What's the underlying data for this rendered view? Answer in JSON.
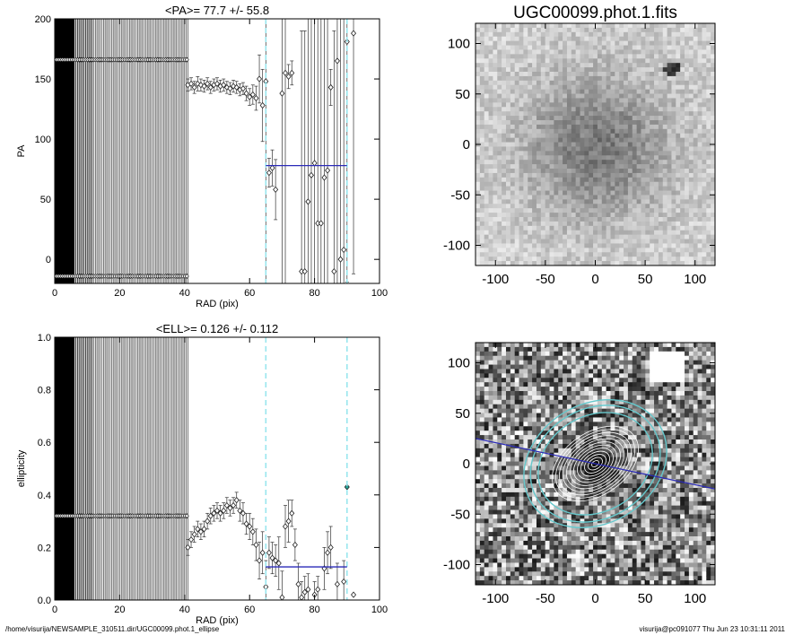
{
  "footer": {
    "left": "/home/visurija/NEWSAMPLE_310511.dir/UGC00099.phot.1_ellipse",
    "right": "visurija@pc091077  Thu Jun 23 10:31:11 2011"
  },
  "colors": {
    "fit_line": "#2a2ab8",
    "marker_line": "#99e6ee",
    "ellipse": "#66c8cc",
    "cyan_point": "#26a69a"
  },
  "chart_data": [
    {
      "type": "scatter",
      "title": "<PA>=  77.7 +/-  55.8",
      "xlabel": "RAD (pix)",
      "ylabel": "PA",
      "xlim": [
        0,
        100
      ],
      "ylim": [
        -20,
        200
      ],
      "xticks": [
        0,
        20,
        40,
        60,
        80,
        100
      ],
      "yticks": [
        0,
        50,
        100,
        150,
        200
      ],
      "dense_vlines": {
        "x_start": 1,
        "x_end": 41,
        "step": 0.5
      },
      "flat_bands": [
        {
          "y": 166,
          "x_start": 0,
          "x_end": 41
        },
        {
          "y": -14,
          "x_start": 0,
          "x_end": 41
        }
      ],
      "points": [
        {
          "x": 41,
          "y": 145,
          "err": 5
        },
        {
          "x": 42,
          "y": 146,
          "err": 5
        },
        {
          "x": 43,
          "y": 143,
          "err": 5
        },
        {
          "x": 44,
          "y": 146,
          "err": 6
        },
        {
          "x": 45,
          "y": 145,
          "err": 5
        },
        {
          "x": 46,
          "y": 144,
          "err": 5
        },
        {
          "x": 47,
          "y": 146,
          "err": 5
        },
        {
          "x": 48,
          "y": 143,
          "err": 5
        },
        {
          "x": 49,
          "y": 145,
          "err": 5
        },
        {
          "x": 50,
          "y": 146,
          "err": 5
        },
        {
          "x": 51,
          "y": 144,
          "err": 5
        },
        {
          "x": 52,
          "y": 145,
          "err": 5
        },
        {
          "x": 53,
          "y": 143,
          "err": 5
        },
        {
          "x": 54,
          "y": 142,
          "err": 5
        },
        {
          "x": 55,
          "y": 144,
          "err": 5
        },
        {
          "x": 56,
          "y": 143,
          "err": 5
        },
        {
          "x": 57,
          "y": 141,
          "err": 5
        },
        {
          "x": 58,
          "y": 142,
          "err": 5
        },
        {
          "x": 59,
          "y": 138,
          "err": 6
        },
        {
          "x": 60,
          "y": 135,
          "err": 7
        },
        {
          "x": 61,
          "y": 137,
          "err": 8
        },
        {
          "x": 62,
          "y": 134,
          "err": 10
        },
        {
          "x": 63,
          "y": 150,
          "err": 20
        },
        {
          "x": 64,
          "y": 128,
          "err": 30
        },
        {
          "x": 65,
          "y": 148,
          "err": 200
        },
        {
          "x": 66,
          "y": 72,
          "err": 12
        },
        {
          "x": 67,
          "y": 76,
          "err": 15
        },
        {
          "x": 68,
          "y": 58,
          "err": 25
        },
        {
          "x": 70,
          "y": 138,
          "err": 200
        },
        {
          "x": 71,
          "y": 155,
          "err": 200
        },
        {
          "x": 72,
          "y": 152,
          "err": 10
        },
        {
          "x": 73,
          "y": 155,
          "err": 10
        },
        {
          "x": 76,
          "y": -10,
          "err": 200
        },
        {
          "x": 77,
          "y": -10,
          "err": 200
        },
        {
          "x": 78,
          "y": 48,
          "err": 200
        },
        {
          "x": 79,
          "y": 70,
          "err": 200
        },
        {
          "x": 80,
          "y": 80,
          "err": 200
        },
        {
          "x": 81,
          "y": 30,
          "err": 200
        },
        {
          "x": 82,
          "y": 30,
          "err": 200
        },
        {
          "x": 83,
          "y": 68,
          "err": 200
        },
        {
          "x": 84,
          "y": 74,
          "err": 200
        },
        {
          "x": 85,
          "y": 143,
          "err": 15
        },
        {
          "x": 86,
          "y": -10,
          "err": 200
        },
        {
          "x": 87,
          "y": 165,
          "err": 200
        },
        {
          "x": 88,
          "y": 0,
          "err": 200
        },
        {
          "x": 89,
          "y": 8,
          "err": 200
        },
        {
          "x": 90,
          "y": 181,
          "err": 200
        },
        {
          "x": 92,
          "y": 188,
          "err": 200
        }
      ],
      "fit_line": {
        "y": 78,
        "x_start": 65,
        "x_end": 90
      },
      "dashed_x": [
        65,
        90
      ]
    },
    {
      "type": "scatter",
      "title": "<ELL>= 0.126 +/-  0.112",
      "xlabel": "RAD (pix)",
      "ylabel": "ellipticity",
      "xlim": [
        0,
        100
      ],
      "ylim": [
        0.0,
        1.0
      ],
      "xticks": [
        0,
        20,
        40,
        60,
        80,
        100
      ],
      "yticks": [
        0.0,
        0.2,
        0.4,
        0.6,
        0.8,
        1.0
      ],
      "dense_vlines": {
        "x_start": 1,
        "x_end": 41,
        "step": 0.5
      },
      "flat_bands": [
        {
          "y": 0.32,
          "x_start": 0,
          "x_end": 41
        }
      ],
      "points": [
        {
          "x": 41,
          "y": 0.2,
          "err": 0.03
        },
        {
          "x": 42,
          "y": 0.23,
          "err": 0.03
        },
        {
          "x": 43,
          "y": 0.25,
          "err": 0.03
        },
        {
          "x": 44,
          "y": 0.27,
          "err": 0.03
        },
        {
          "x": 45,
          "y": 0.26,
          "err": 0.03
        },
        {
          "x": 46,
          "y": 0.27,
          "err": 0.03
        },
        {
          "x": 47,
          "y": 0.3,
          "err": 0.03
        },
        {
          "x": 48,
          "y": 0.32,
          "err": 0.03
        },
        {
          "x": 49,
          "y": 0.33,
          "err": 0.03
        },
        {
          "x": 50,
          "y": 0.34,
          "err": 0.03
        },
        {
          "x": 51,
          "y": 0.33,
          "err": 0.03
        },
        {
          "x": 52,
          "y": 0.34,
          "err": 0.03
        },
        {
          "x": 53,
          "y": 0.36,
          "err": 0.03
        },
        {
          "x": 54,
          "y": 0.35,
          "err": 0.03
        },
        {
          "x": 55,
          "y": 0.36,
          "err": 0.03
        },
        {
          "x": 56,
          "y": 0.38,
          "err": 0.03
        },
        {
          "x": 57,
          "y": 0.34,
          "err": 0.04
        },
        {
          "x": 58,
          "y": 0.33,
          "err": 0.04
        },
        {
          "x": 59,
          "y": 0.29,
          "err": 0.04
        },
        {
          "x": 60,
          "y": 0.28,
          "err": 0.05
        },
        {
          "x": 61,
          "y": 0.26,
          "err": 0.05
        },
        {
          "x": 62,
          "y": 0.21,
          "err": 0.06
        },
        {
          "x": 63,
          "y": 0.15,
          "err": 0.07
        },
        {
          "x": 64,
          "y": 0.18,
          "err": 0.08
        },
        {
          "x": 65,
          "y": 0.05,
          "err": 0.1
        },
        {
          "x": 66,
          "y": 0.18,
          "err": 0.06
        },
        {
          "x": 67,
          "y": 0.16,
          "err": 0.06
        },
        {
          "x": 68,
          "y": 0.15,
          "err": 0.06
        },
        {
          "x": 69,
          "y": 0.14,
          "err": 0.1
        },
        {
          "x": 70,
          "y": 0.01,
          "err": 0.1
        },
        {
          "x": 71,
          "y": 0.28,
          "err": 0.08
        },
        {
          "x": 72,
          "y": 0.3,
          "err": 0.08
        },
        {
          "x": 73,
          "y": 0.33,
          "err": 0.05
        },
        {
          "x": 74,
          "y": 0.21,
          "err": 0.06
        },
        {
          "x": 75,
          "y": 0.06,
          "err": 0.08
        },
        {
          "x": 76,
          "y": 0.01,
          "err": 0.06
        },
        {
          "x": 77,
          "y": 0.03,
          "err": 0.06
        },
        {
          "x": 78,
          "y": 0.04,
          "err": 0.06
        },
        {
          "x": 80,
          "y": 0.02,
          "err": 0.05
        },
        {
          "x": 81,
          "y": 0.04,
          "err": 0.05
        },
        {
          "x": 83,
          "y": 0.12,
          "err": 0.08
        },
        {
          "x": 84,
          "y": 0.18,
          "err": 0.08
        },
        {
          "x": 85,
          "y": 0.2,
          "err": 0.08
        },
        {
          "x": 87,
          "y": 0.06,
          "err": 0.08
        },
        {
          "x": 89,
          "y": 0.07,
          "err": 0.08
        },
        {
          "x": 90,
          "y": 0.43,
          "err": 0.0
        },
        {
          "x": 92,
          "y": 0.02,
          "err": 0.0
        }
      ],
      "fit_line": {
        "y": 0.126,
        "x_start": 65,
        "x_end": 90
      },
      "dashed_x": [
        65,
        90
      ]
    },
    {
      "type": "heatmap",
      "title": "UGC00099.phot.1.fits",
      "xlim": [
        -120,
        120
      ],
      "ylim": [
        -120,
        120
      ],
      "xticks": [
        -100,
        -50,
        0,
        50,
        100
      ],
      "yticks": [
        -100,
        -50,
        0,
        50,
        100
      ],
      "source_center": [
        0,
        0
      ],
      "bright_spot": [
        70,
        75
      ]
    },
    {
      "type": "heatmap",
      "title": "",
      "xlim": [
        -120,
        120
      ],
      "ylim": [
        -120,
        120
      ],
      "xticks": [
        -100,
        -50,
        0,
        50,
        100
      ],
      "yticks": [
        -100,
        -50,
        0,
        50,
        100
      ],
      "ellipses": [
        {
          "a": 75,
          "b": 60
        },
        {
          "a": 68,
          "b": 55
        },
        {
          "a": 60,
          "b": 48
        }
      ],
      "pa_line": {
        "from": [
          -120,
          25
        ],
        "to": [
          120,
          -25
        ]
      }
    }
  ]
}
